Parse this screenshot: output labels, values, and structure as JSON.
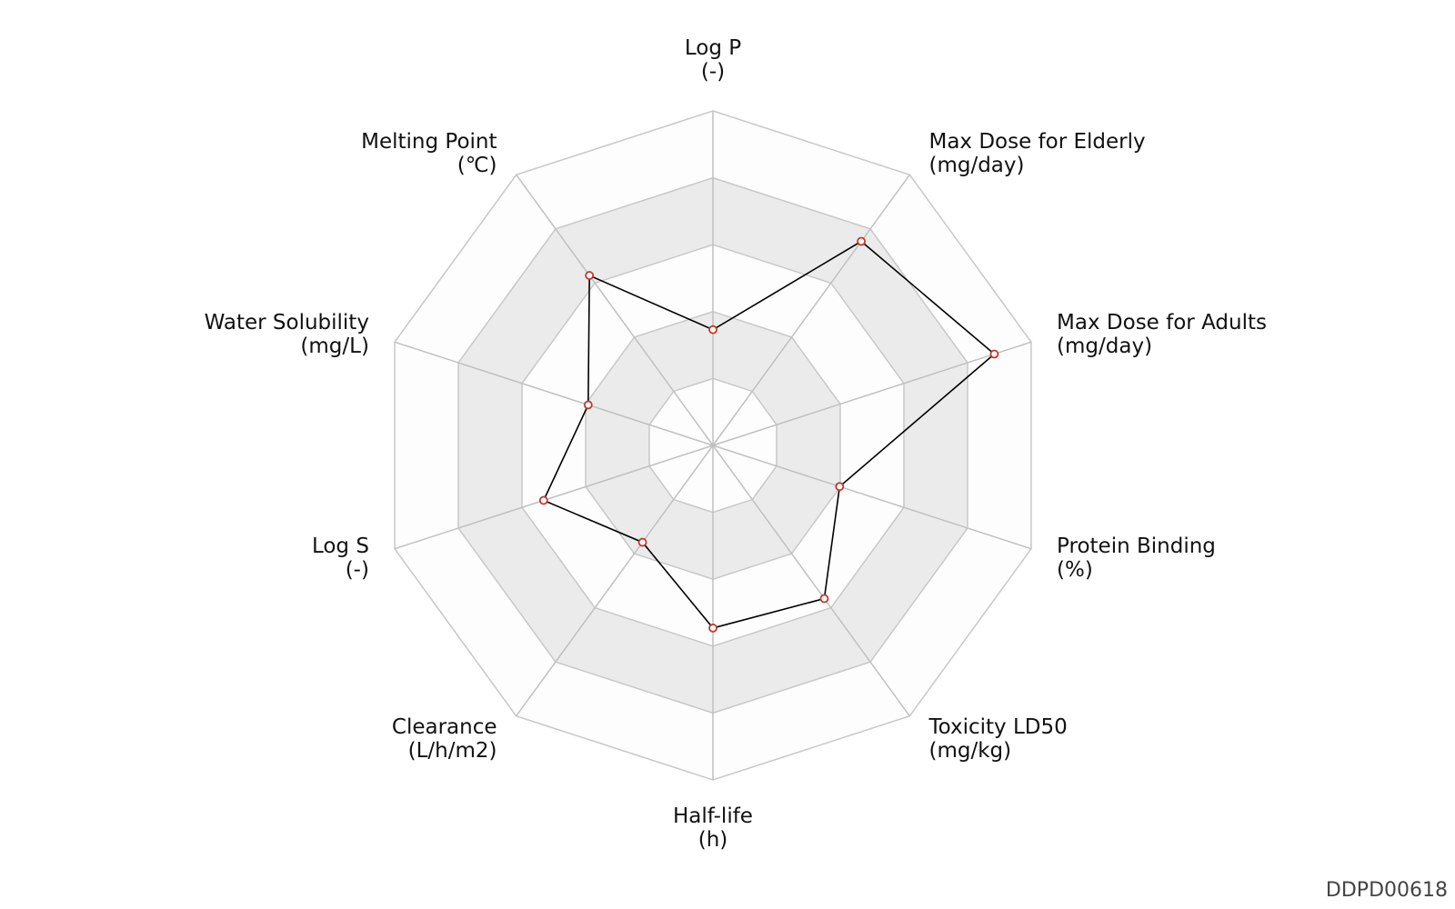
{
  "chart_data": {
    "type": "radar",
    "categories": [
      "Log P",
      "Max Dose for Elderly",
      "Max Dose for Adults",
      "Protein Binding",
      "Toxicity LD50",
      "Half-life",
      "Clearance",
      "Log S",
      "Water Solubility",
      "Melting Point"
    ],
    "units": [
      "(-)",
      "(mg/day)",
      "(mg/day)",
      "(%)",
      "(mg/kg)",
      "(h)",
      "(L/h/m2)",
      "(-)",
      "(mg/L)",
      "(℃)"
    ],
    "values": [
      1.73,
      3.77,
      4.42,
      1.99,
      2.83,
      2.73,
      1.79,
      2.66,
      1.96,
      3.14
    ],
    "color": "#000000",
    "marker_color": "#c0392b",
    "rlim": [
      0,
      5
    ],
    "rticks": [
      1,
      2,
      3,
      4,
      5
    ],
    "grid": true,
    "watermark": "DDPD00618"
  }
}
